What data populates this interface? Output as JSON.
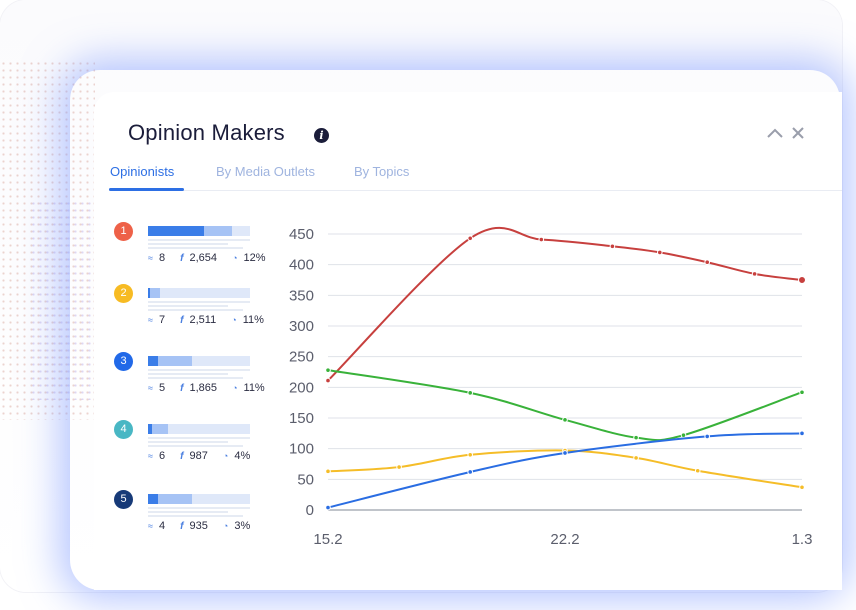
{
  "header": {
    "title": "Opinion Makers",
    "info_icon": "i"
  },
  "controls": {
    "collapse_icon": "^",
    "close_icon": "×"
  },
  "tabs": [
    {
      "label": "Opinionists",
      "active": true
    },
    {
      "label": "By Media Outlets",
      "active": false
    },
    {
      "label": "By Topics",
      "active": false
    }
  ],
  "opinionists": [
    {
      "rank": "1",
      "color": "#ee6148",
      "articles": "8",
      "facebook": "2,654",
      "share": "12%",
      "bar_dark": 0.55,
      "bar_light": 0.82
    },
    {
      "rank": "2",
      "color": "#f7bb23",
      "articles": "7",
      "facebook": "2,511",
      "share": "11%",
      "bar_dark": 0.02,
      "bar_light": 0.12
    },
    {
      "rank": "3",
      "color": "#2169e8",
      "articles": "5",
      "facebook": "1,865",
      "share": "11%",
      "bar_dark": 0.1,
      "bar_light": 0.43
    },
    {
      "rank": "4",
      "color": "#49b7c4",
      "articles": "6",
      "facebook": "987",
      "share": "4%",
      "bar_dark": 0.04,
      "bar_light": 0.2
    },
    {
      "rank": "5",
      "color": "#173a78",
      "articles": "4",
      "facebook": "935",
      "share": "3%",
      "bar_dark": 0.1,
      "bar_light": 0.43
    }
  ],
  "chart_data": {
    "type": "line",
    "x_labels": [
      "15.2",
      "22.2",
      "1.3"
    ],
    "y_ticks": [
      0,
      50,
      100,
      150,
      200,
      250,
      300,
      350,
      400,
      450
    ],
    "ylim": [
      0,
      450
    ],
    "x_range": [
      0,
      14
    ],
    "grid": true,
    "series": [
      {
        "color": "#c7403e",
        "points": [
          [
            0,
            211
          ],
          [
            3,
            443
          ],
          [
            4.5,
            441
          ],
          [
            6,
            430
          ],
          [
            7,
            420
          ],
          [
            8,
            404
          ],
          [
            9,
            385
          ],
          [
            10,
            375
          ]
        ]
      },
      {
        "color": "#39b23a",
        "points": [
          [
            0,
            228
          ],
          [
            3,
            191
          ],
          [
            5,
            147
          ],
          [
            6.5,
            118
          ],
          [
            7.5,
            122
          ],
          [
            10,
            192
          ]
        ]
      },
      {
        "color": "#f5bd28",
        "points": [
          [
            0,
            63
          ],
          [
            1.5,
            70
          ],
          [
            3,
            90
          ],
          [
            5,
            97
          ],
          [
            6.5,
            85
          ],
          [
            7.8,
            64
          ],
          [
            10,
            37
          ]
        ]
      },
      {
        "color": "#2a6de2",
        "points": [
          [
            0,
            4
          ],
          [
            3,
            62
          ],
          [
            5,
            93
          ],
          [
            8,
            120
          ],
          [
            10,
            125
          ]
        ]
      }
    ],
    "x_label_positions": [
      0,
      5,
      10
    ]
  }
}
